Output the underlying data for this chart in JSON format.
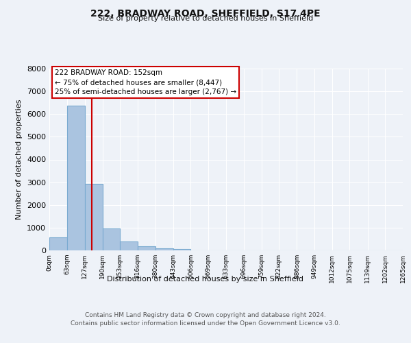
{
  "title": "222, BRADWAY ROAD, SHEFFIELD, S17 4PE",
  "subtitle": "Size of property relative to detached houses in Sheffield",
  "xlabel": "Distribution of detached houses by size in Sheffield",
  "ylabel": "Number of detached properties",
  "bin_edges": [
    0,
    63,
    127,
    190,
    253,
    316,
    380,
    443,
    506,
    569,
    633,
    696,
    759,
    822,
    886,
    949,
    1012,
    1075,
    1139,
    1202,
    1265
  ],
  "bin_labels": [
    "0sqm",
    "63sqm",
    "127sqm",
    "190sqm",
    "253sqm",
    "316sqm",
    "380sqm",
    "443sqm",
    "506sqm",
    "569sqm",
    "633sqm",
    "696sqm",
    "759sqm",
    "822sqm",
    "886sqm",
    "949sqm",
    "1012sqm",
    "1075sqm",
    "1139sqm",
    "1202sqm",
    "1265sqm"
  ],
  "bar_heights": [
    560,
    6380,
    2930,
    980,
    390,
    170,
    100,
    60,
    0,
    0,
    0,
    0,
    0,
    0,
    0,
    0,
    0,
    0,
    0,
    0
  ],
  "bar_color": "#aac4e0",
  "bar_edgecolor": "#7aaad0",
  "vline_x": 152,
  "vline_color": "#cc0000",
  "annotation_line1": "222 BRADWAY ROAD: 152sqm",
  "annotation_line2": "← 75% of detached houses are smaller (8,447)",
  "annotation_line3": "25% of semi-detached houses are larger (2,767) →",
  "annotation_box_color": "#cc0000",
  "ylim": [
    0,
    8000
  ],
  "yticks": [
    0,
    1000,
    2000,
    3000,
    4000,
    5000,
    6000,
    7000,
    8000
  ],
  "bg_color": "#eef2f8",
  "plot_bg_color": "#eef2f8",
  "grid_color": "#ffffff",
  "footer_line1": "Contains HM Land Registry data © Crown copyright and database right 2024.",
  "footer_line2": "Contains public sector information licensed under the Open Government Licence v3.0."
}
